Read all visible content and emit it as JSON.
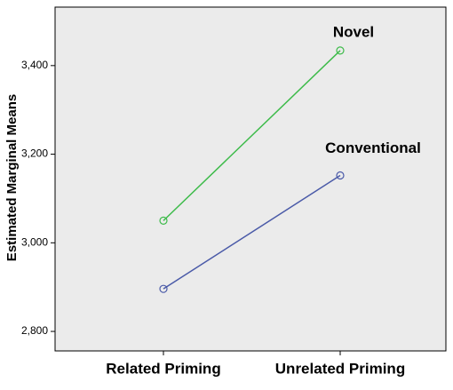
{
  "chart_data": {
    "type": "line",
    "y_label": "Estimated Marginal Means",
    "categories": [
      "Related Priming",
      "Unrelated Priming"
    ],
    "series": [
      {
        "name": "Novel",
        "color": "#3dbb4a",
        "values": [
          3050,
          3434
        ]
      },
      {
        "name": "Conventional",
        "color": "#4a5aa8",
        "values": [
          2896,
          3152
        ]
      }
    ],
    "ylim": [
      2756,
      3532
    ],
    "yticks": [
      {
        "value": 2800,
        "label": "2,800"
      },
      {
        "value": 3000,
        "label": "3,000"
      },
      {
        "value": 3200,
        "label": "3,200"
      },
      {
        "value": 3400,
        "label": "3,400"
      }
    ],
    "grid": false
  }
}
